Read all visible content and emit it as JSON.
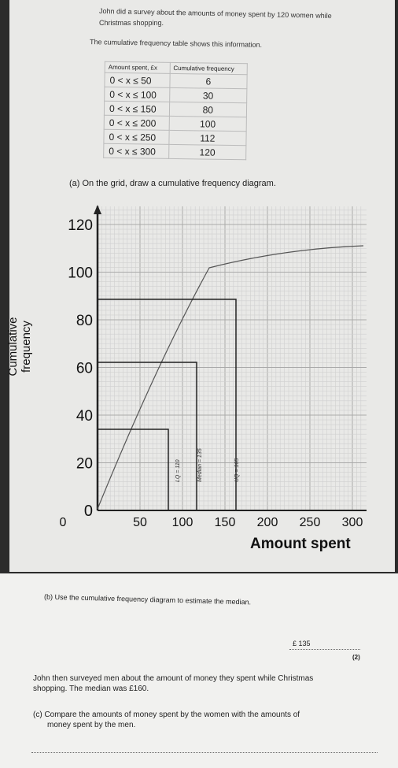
{
  "intro": {
    "line1": "John did a survey about the amounts of money spent by 120 women while",
    "line2": "Christmas shopping.",
    "line3": "The cumulative frequency table shows this information."
  },
  "table": {
    "headers": [
      "Amount spent, £x",
      "Cumulative frequency"
    ],
    "rows": [
      {
        "range": "0 < x ≤ 50",
        "cf": "6"
      },
      {
        "range": "0 < x ≤ 100",
        "cf": "30"
      },
      {
        "range": "0 < x ≤ 150",
        "cf": "80"
      },
      {
        "range": "0 < x ≤ 200",
        "cf": "100"
      },
      {
        "range": "0 < x ≤ 250",
        "cf": "112"
      },
      {
        "range": "0 < x ≤ 300",
        "cf": "120"
      }
    ]
  },
  "question_a": "(a) On the grid, draw a cumulative frequency diagram.",
  "graph": {
    "y_ticks": [
      "0",
      "20",
      "40",
      "60",
      "80",
      "100",
      "120"
    ],
    "x_ticks": [
      "0",
      "50",
      "100",
      "150",
      "200",
      "250",
      "300"
    ],
    "y_axis_label_1": "Cumulative",
    "y_axis_label_2": "frequency",
    "x_axis_label": "Amount spent",
    "annotations": [
      "LQ = 110",
      "Median = 135",
      "UQ = 165"
    ],
    "annotation_color": "#333333"
  },
  "question_b": "(b) Use the cumulative frequency diagram to estimate the median.",
  "answer_b": "£ 135",
  "marks_b": "(2)",
  "men_text_1": "John then surveyed men about the amount of money they spent while Christmas",
  "men_text_2": "shopping. The median was £160.",
  "question_c_1": "(c)  Compare the amounts of money spent by the women with the amounts of",
  "question_c_2": "money spent by the men."
}
